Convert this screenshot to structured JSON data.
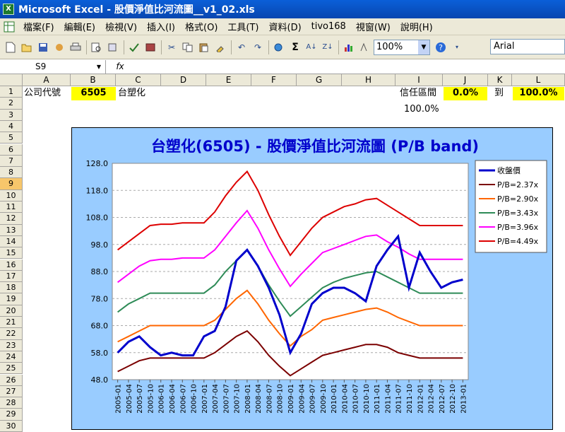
{
  "window": {
    "title": "Microsoft Excel - 股價淨值比河流圖__v1_02.xls"
  },
  "menu": [
    "檔案(F)",
    "編輯(E)",
    "檢視(V)",
    "插入(I)",
    "格式(O)",
    "工具(T)",
    "資料(D)",
    "tivo168",
    "視窗(W)",
    "說明(H)"
  ],
  "toolbar": {
    "zoom": "100%",
    "font": "Arial"
  },
  "formula": {
    "name_box": "S9",
    "fx": "fx"
  },
  "columns": [
    "A",
    "B",
    "C",
    "D",
    "E",
    "F",
    "G",
    "H",
    "I",
    "J",
    "K",
    "L"
  ],
  "rows": [
    "1",
    "2",
    "3",
    "4",
    "5",
    "6",
    "7",
    "8",
    "9",
    "10",
    "11",
    "12",
    "13",
    "14",
    "15",
    "16",
    "17",
    "18",
    "19",
    "20",
    "21",
    "22",
    "23",
    "24",
    "25",
    "26",
    "27",
    "28",
    "29",
    "30"
  ],
  "cells": {
    "a1": "公司代號",
    "b1": "6505",
    "c1": "台塑化",
    "i1": "信任區間",
    "j1": "0.0%",
    "k1": "到",
    "l1": "100.0%",
    "i2": "100.0%"
  },
  "chart_data": {
    "type": "line",
    "title": "台塑化(6505)  - 股價淨值比河流圖 (P/B band)",
    "ylim": [
      48,
      128
    ],
    "yticks": [
      "48.0",
      "58.0",
      "68.0",
      "78.0",
      "88.0",
      "98.0",
      "108.0",
      "118.0",
      "128.0"
    ],
    "x": [
      "2005-01",
      "2005-04",
      "2005-07",
      "2005-10",
      "2006-01",
      "2006-04",
      "2006-07",
      "2006-10",
      "2007-01",
      "2007-04",
      "2007-07",
      "2007-10",
      "2008-01",
      "2008-04",
      "2008-07",
      "2008-10",
      "2009-01",
      "2009-04",
      "2009-07",
      "2009-10",
      "2010-01",
      "2010-04",
      "2010-07",
      "2010-10",
      "2011-01",
      "2011-04",
      "2011-07",
      "2011-10",
      "2012-01",
      "2012-04",
      "2012-07",
      "2012-10",
      "2013-01"
    ],
    "grid": "horizontal dashed",
    "legend": "right",
    "series": [
      {
        "name": "收盤價",
        "color": "#0000cc",
        "values": [
          58,
          62,
          64,
          60,
          57,
          58,
          57,
          57,
          64,
          66,
          75,
          92,
          96,
          90,
          82,
          72,
          58,
          65,
          76,
          80,
          82,
          82,
          80,
          77,
          90,
          96,
          101,
          82,
          95,
          88,
          82,
          84,
          85
        ]
      },
      {
        "name": "P/B=2.37x",
        "color": "#7b0000",
        "values": [
          51,
          53,
          55,
          56,
          56,
          56,
          56,
          56,
          56,
          58,
          61,
          64,
          66,
          62,
          57,
          53,
          49.5,
          52,
          54.5,
          57,
          58,
          59,
          60,
          61,
          61,
          60,
          58,
          57,
          56,
          56,
          56,
          56,
          56
        ]
      },
      {
        "name": "P/B=2.90x",
        "color": "#ff6600",
        "values": [
          62,
          64,
          66,
          68,
          68,
          68,
          68,
          68,
          68,
          70,
          74,
          78,
          81,
          76,
          70,
          65,
          60.5,
          64,
          66.5,
          70,
          71,
          72,
          73,
          74,
          74.5,
          73,
          71,
          69.5,
          68,
          68,
          68,
          68,
          68
        ]
      },
      {
        "name": "P/B=3.43x",
        "color": "#2e8b57",
        "values": [
          73,
          76,
          78,
          80,
          80,
          80,
          80,
          80,
          80,
          83,
          88,
          92,
          96,
          90,
          83,
          77,
          71.5,
          75,
          78.5,
          82,
          84,
          85.5,
          86.5,
          87.5,
          88,
          86,
          84,
          82,
          80,
          80,
          80,
          80,
          80
        ]
      },
      {
        "name": "P/B=3.96x",
        "color": "#ff00ff",
        "values": [
          84,
          87,
          90,
          92,
          92.5,
          92.5,
          93,
          93,
          93,
          96,
          101,
          106,
          110.5,
          104,
          96,
          89,
          82.5,
          87,
          91,
          95,
          96.5,
          98,
          99.5,
          101,
          101.5,
          99,
          97,
          94.5,
          92.5,
          92.5,
          92.5,
          92.5,
          92.5
        ]
      },
      {
        "name": "P/B=4.49x",
        "color": "#dd0000",
        "values": [
          96,
          99,
          102,
          105,
          105.5,
          105.5,
          106,
          106,
          106,
          110,
          116,
          121,
          125,
          118,
          109,
          101,
          94,
          99,
          104,
          108,
          110,
          112,
          113,
          114.5,
          115,
          112.5,
          110,
          107.5,
          105,
          105,
          105,
          105,
          105
        ]
      }
    ]
  }
}
